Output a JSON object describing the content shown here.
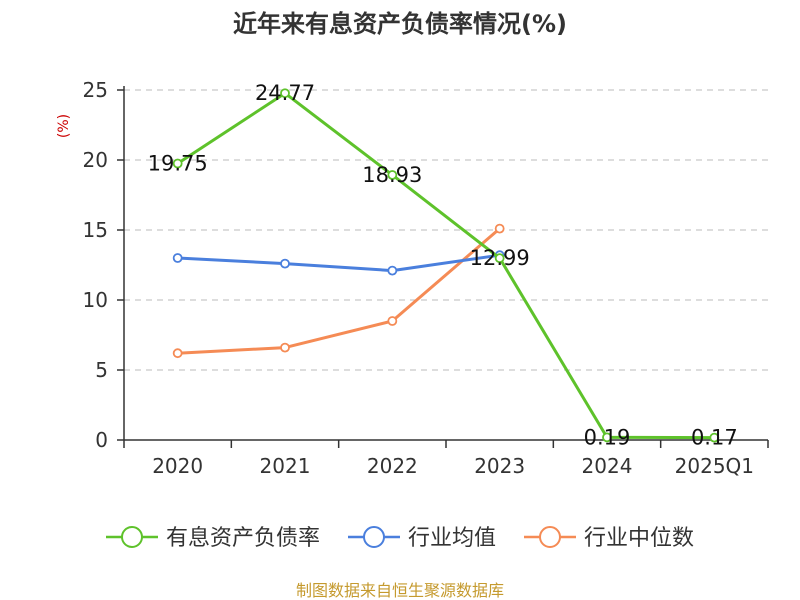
{
  "chart_data": {
    "type": "line",
    "title": "近年来有息资产负债率情况(%)",
    "ylabel": "(%)",
    "categories": [
      "2020",
      "2021",
      "2022",
      "2023",
      "2024",
      "2025Q1"
    ],
    "ylim": [
      0,
      25
    ],
    "yticks": [
      0,
      5,
      10,
      15,
      20,
      25
    ],
    "grid": true,
    "legend_position": "bottom",
    "series": [
      {
        "name": "有息资产负债率",
        "color": "#5ec22b",
        "values": [
          19.75,
          24.77,
          18.93,
          12.99,
          0.19,
          0.17
        ],
        "labels": [
          "19.75",
          "24.77",
          "18.93",
          "12.99",
          "0.19",
          "0.17"
        ]
      },
      {
        "name": "行业均值",
        "color": "#4a7fdd",
        "values": [
          13.0,
          12.6,
          12.1,
          13.2,
          null,
          null
        ]
      },
      {
        "name": "行业中位数",
        "color": "#f58b55",
        "values": [
          6.2,
          6.6,
          8.5,
          15.1,
          null,
          null
        ]
      }
    ],
    "source": "制图数据来自恒生聚源数据库"
  }
}
